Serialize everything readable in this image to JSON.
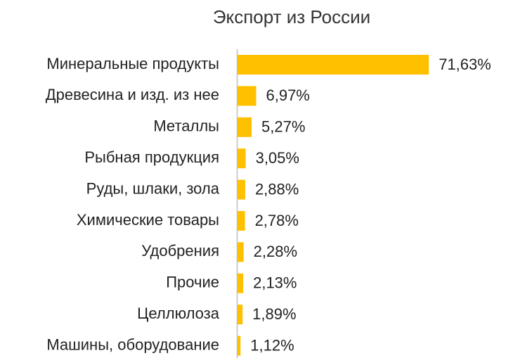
{
  "chart_data": {
    "type": "bar",
    "orientation": "horizontal",
    "title": "Экспорт из России",
    "categories": [
      "Минеральные продукты",
      "Древесина и изд. из нее",
      "Металлы",
      "Рыбная продукция",
      "Руды, шлаки, зола",
      "Химические товары",
      "Удобрения",
      "Прочие",
      "Целлюлоза",
      "Машины, оборудование"
    ],
    "values": [
      71.63,
      6.97,
      5.27,
      3.05,
      2.88,
      2.78,
      2.28,
      2.13,
      1.89,
      1.12
    ],
    "value_labels": [
      "71,63%",
      "6,97%",
      "5,27%",
      "3,05%",
      "2,88%",
      "2,78%",
      "2,28%",
      "2,13%",
      "1,89%",
      "1,12%"
    ],
    "color": "#ffc000"
  }
}
